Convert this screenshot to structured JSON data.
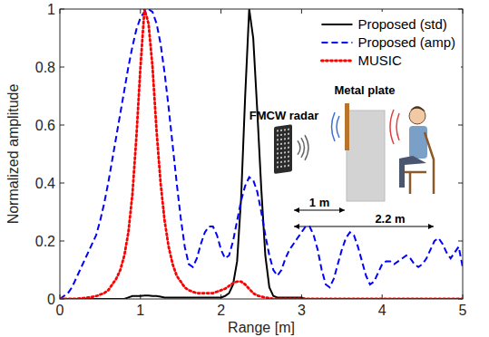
{
  "chart_data": {
    "type": "line",
    "x_label": "Range [m]",
    "y_label": "Normalized amplitude",
    "xlim": [
      0,
      5
    ],
    "ylim": [
      0,
      1
    ],
    "xticks": [
      0,
      1,
      2,
      3,
      4,
      5
    ],
    "yticks": [
      0,
      0.2,
      0.4,
      0.6,
      0.8,
      1
    ],
    "grid": false,
    "legend": "top-right",
    "annotations": [
      "FMCW radar",
      "Metal plate",
      "1 m",
      "2.2 m"
    ],
    "x": [
      0,
      0.05,
      0.1,
      0.15,
      0.2,
      0.25,
      0.3,
      0.35,
      0.4,
      0.45,
      0.5,
      0.55,
      0.6,
      0.65,
      0.7,
      0.75,
      0.8,
      0.85,
      0.9,
      0.95,
      1,
      1.05,
      1.1,
      1.15,
      1.2,
      1.25,
      1.3,
      1.35,
      1.4,
      1.45,
      1.5,
      1.55,
      1.6,
      1.65,
      1.7,
      1.75,
      1.8,
      1.85,
      1.9,
      1.95,
      2,
      2.05,
      2.1,
      2.15,
      2.2,
      2.25,
      2.3,
      2.35,
      2.4,
      2.45,
      2.5,
      2.55,
      2.6,
      2.65,
      2.7,
      2.75,
      2.8,
      2.85,
      2.9,
      2.95,
      3,
      3.05,
      3.1,
      3.15,
      3.2,
      3.25,
      3.3,
      3.35,
      3.4,
      3.45,
      3.5,
      3.55,
      3.6,
      3.65,
      3.7,
      3.75,
      3.8,
      3.85,
      3.9,
      3.95,
      4,
      4.05,
      4.1,
      4.15,
      4.2,
      4.25,
      4.3,
      4.35,
      4.4,
      4.45,
      4.5,
      4.55,
      4.6,
      4.65,
      4.7,
      4.75,
      4.8,
      4.85,
      4.9,
      4.95,
      5
    ],
    "series": [
      {
        "name": "Proposed (std)",
        "color": "#000000",
        "line_style": "solid",
        "values": [
          0,
          0,
          0,
          0,
          0,
          0,
          0,
          0,
          0,
          0,
          0,
          0,
          0,
          0,
          0,
          0,
          0,
          0.005,
          0.01,
          0.01,
          0.01,
          0.012,
          0.012,
          0.01,
          0.01,
          0.008,
          0.005,
          0.005,
          0.005,
          0.005,
          0.005,
          0.005,
          0.005,
          0.005,
          0.005,
          0.005,
          0.005,
          0.005,
          0.005,
          0.005,
          0.005,
          0.01,
          0.02,
          0.05,
          0.13,
          0.35,
          0.7,
          1,
          0.9,
          0.65,
          0.38,
          0.15,
          0.04,
          0.01,
          0.005,
          0.005,
          0.005,
          0.005,
          0.005,
          0.005,
          0.005,
          0,
          0,
          0,
          0,
          0,
          0,
          0,
          0,
          0,
          0,
          0,
          0,
          0,
          0,
          0,
          0,
          0,
          0,
          0,
          0,
          0,
          0,
          0,
          0,
          0,
          0,
          0,
          0,
          0,
          0,
          0,
          0,
          0,
          0,
          0,
          0,
          0,
          0,
          0,
          0
        ]
      },
      {
        "name": "Proposed (amp)",
        "color": "#0000ff",
        "line_style": "dashed",
        "values": [
          0,
          0.01,
          0.02,
          0.04,
          0.07,
          0.1,
          0.13,
          0.16,
          0.19,
          0.22,
          0.27,
          0.33,
          0.4,
          0.48,
          0.56,
          0.64,
          0.72,
          0.8,
          0.87,
          0.93,
          0.97,
          0.99,
          1,
          0.99,
          0.95,
          0.88,
          0.78,
          0.66,
          0.53,
          0.4,
          0.28,
          0.18,
          0.12,
          0.11,
          0.14,
          0.19,
          0.23,
          0.25,
          0.25,
          0.22,
          0.17,
          0.14,
          0.15,
          0.2,
          0.27,
          0.34,
          0.39,
          0.42,
          0.41,
          0.37,
          0.3,
          0.22,
          0.15,
          0.1,
          0.08,
          0.1,
          0.14,
          0.17,
          0.19,
          0.21,
          0.23,
          0.25,
          0.25,
          0.22,
          0.17,
          0.1,
          0.05,
          0.04,
          0.07,
          0.12,
          0.17,
          0.21,
          0.23,
          0.22,
          0.18,
          0.13,
          0.08,
          0.05,
          0.06,
          0.09,
          0.12,
          0.13,
          0.13,
          0.12,
          0.13,
          0.14,
          0.15,
          0.14,
          0.12,
          0.11,
          0.12,
          0.14,
          0.17,
          0.2,
          0.21,
          0.19,
          0.16,
          0.14,
          0.16,
          0.18,
          0.11
        ]
      },
      {
        "name": "MUSIC",
        "color": "#ff0000",
        "line_style": "dotted",
        "values": [
          0,
          0,
          0,
          0,
          0,
          0.002,
          0.003,
          0.005,
          0.007,
          0.01,
          0.015,
          0.02,
          0.03,
          0.05,
          0.07,
          0.1,
          0.15,
          0.23,
          0.36,
          0.56,
          0.8,
          1,
          0.95,
          0.8,
          0.58,
          0.4,
          0.27,
          0.18,
          0.12,
          0.08,
          0.06,
          0.04,
          0.03,
          0.025,
          0.02,
          0.02,
          0.02,
          0.02,
          0.02,
          0.025,
          0.03,
          0.035,
          0.045,
          0.055,
          0.06,
          0.06,
          0.05,
          0.035,
          0.02,
          0.012,
          0.008,
          0.005,
          0.003,
          0,
          0,
          0,
          0,
          0,
          0,
          0,
          0,
          0,
          0,
          0,
          0,
          0,
          0,
          0,
          0,
          0,
          0,
          0,
          0,
          0,
          0,
          0,
          0,
          0,
          0,
          0,
          0,
          0,
          0,
          0,
          0,
          0,
          0,
          0,
          0,
          0,
          0,
          0,
          0,
          0,
          0,
          0,
          0,
          0,
          0,
          0,
          0
        ]
      }
    ]
  }
}
